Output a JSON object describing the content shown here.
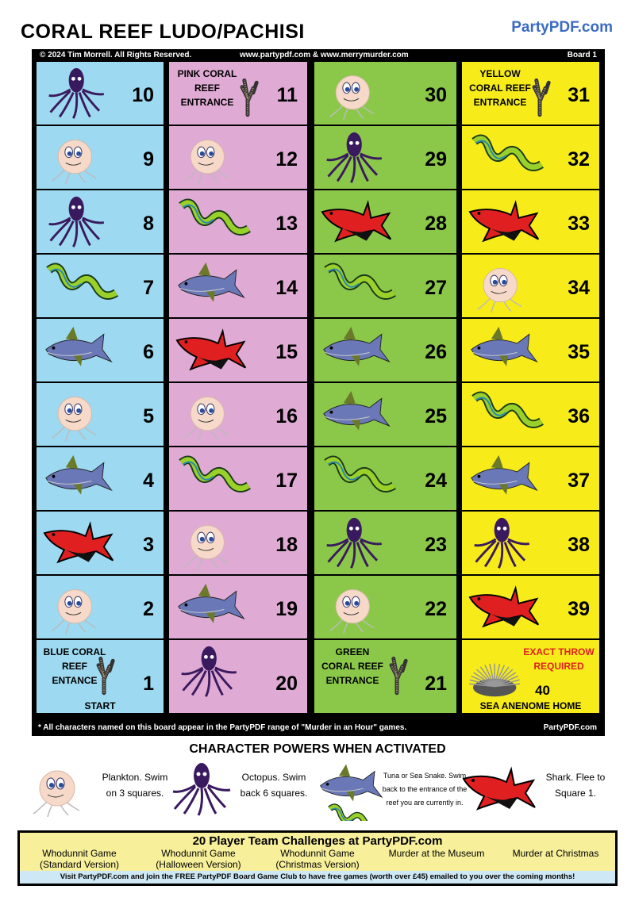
{
  "header": {
    "title": "CORAL REEF LUDO/PACHISI",
    "brand": "PartyPDF.com"
  },
  "strip": {
    "copyright": "© 2024 Tim Morrell. All Rights Reserved.",
    "sites": "www.partypdf.com & www.merrymurder.com",
    "board": "Board 1"
  },
  "colors": {
    "blue": "#9dd9f0",
    "pink": "#dfaad4",
    "green": "#8bc84a",
    "yellow": "#f7ec1a"
  },
  "columns": [
    {
      "color": "blue",
      "cells": [
        {
          "n": "10",
          "icon": "octopus"
        },
        {
          "n": "9",
          "icon": "plankton"
        },
        {
          "n": "8",
          "icon": "octopus"
        },
        {
          "n": "7",
          "icon": "snake"
        },
        {
          "n": "6",
          "icon": "tuna"
        },
        {
          "n": "5",
          "icon": "plankton"
        },
        {
          "n": "4",
          "icon": "tuna"
        },
        {
          "n": "3",
          "icon": "shark"
        },
        {
          "n": "2",
          "icon": "plankton"
        },
        {
          "n": "1",
          "icon": "coral",
          "label": "BLUE CORAL REEF ENTANCE",
          "start": "START"
        }
      ]
    },
    {
      "color": "pink",
      "cells": [
        {
          "n": "11",
          "icon": "coral",
          "label": "PINK CORAL REEF ENTRANCE"
        },
        {
          "n": "12",
          "icon": "plankton"
        },
        {
          "n": "13",
          "icon": "snake"
        },
        {
          "n": "14",
          "icon": "tuna"
        },
        {
          "n": "15",
          "icon": "shark"
        },
        {
          "n": "16",
          "icon": "plankton"
        },
        {
          "n": "17",
          "icon": "snake"
        },
        {
          "n": "18",
          "icon": "plankton"
        },
        {
          "n": "19",
          "icon": "tuna"
        },
        {
          "n": "20",
          "icon": "octopus"
        }
      ]
    },
    {
      "color": "green",
      "cells": [
        {
          "n": "30",
          "icon": "plankton"
        },
        {
          "n": "29",
          "icon": "octopus"
        },
        {
          "n": "28",
          "icon": "shark"
        },
        {
          "n": "27",
          "icon": "snake"
        },
        {
          "n": "26",
          "icon": "tuna"
        },
        {
          "n": "25",
          "icon": "tuna"
        },
        {
          "n": "24",
          "icon": "snake"
        },
        {
          "n": "23",
          "icon": "octopus"
        },
        {
          "n": "22",
          "icon": "plankton"
        },
        {
          "n": "21",
          "icon": "coral",
          "label": "GREEN CORAL REEF ENTRANCE"
        }
      ]
    },
    {
      "color": "yellow",
      "cells": [
        {
          "n": "31",
          "icon": "coral",
          "label": "YELLOW CORAL REEF ENTRANCE"
        },
        {
          "n": "32",
          "icon": "snake"
        },
        {
          "n": "33",
          "icon": "shark"
        },
        {
          "n": "34",
          "icon": "plankton"
        },
        {
          "n": "35",
          "icon": "tuna"
        },
        {
          "n": "36",
          "icon": "snake"
        },
        {
          "n": "37",
          "icon": "tuna"
        },
        {
          "n": "38",
          "icon": "octopus"
        },
        {
          "n": "39",
          "icon": "shark"
        },
        {
          "n": "40",
          "icon": "anemone",
          "label": "EXACT THROW REQUIRED",
          "home": "SEA ANENOME HOME"
        }
      ]
    }
  ],
  "footer": {
    "note": "* All characters named on this board appear in the PartyPDF range of \"Murder in an Hour\" games.",
    "brand": "PartyPDF.com"
  },
  "powers": {
    "title": "CHARACTER POWERS WHEN ACTIVATED",
    "items": [
      {
        "icon": "plankton",
        "text": "Plankton. Swim on 3 squares."
      },
      {
        "icon": "octopus",
        "text": "Octopus. Swim back 6 squares."
      },
      {
        "icon": "tuna-snake",
        "text": "Tuna or Sea Snake. Swim back to the entrance of the reef you are currently in."
      },
      {
        "icon": "shark",
        "text": "Shark. Flee to Square 1."
      }
    ]
  },
  "banner": {
    "title": "20 Player Team Challenges at PartyPDF.com",
    "games": [
      "Whodunnit Game (Standard Version)",
      "Whodunnit Game (Halloween Version)",
      "Whodunnit Game (Christmas Version)",
      "Murder at the Museum",
      "Murder at Christmas"
    ],
    "visit": "Visit PartyPDF.com and join the FREE PartyPDF Board Game Club to have free games (worth over £45) emailed to you over the coming months!"
  }
}
